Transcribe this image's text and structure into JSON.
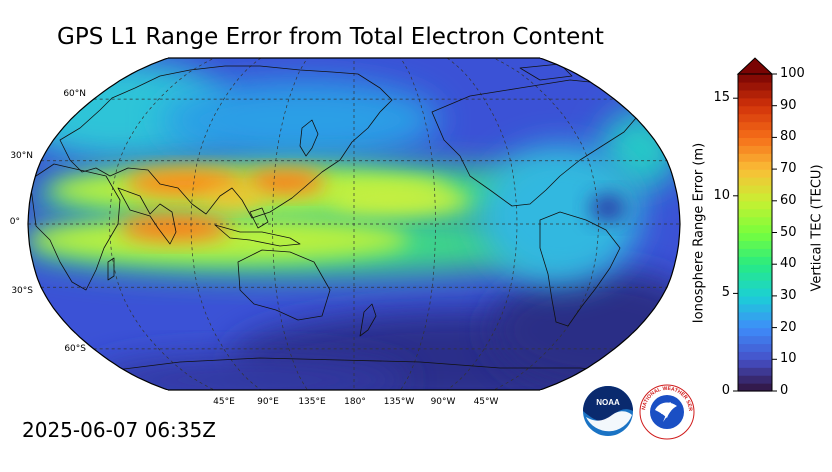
{
  "title": "GPS L1 Range Error from Total Electron Content",
  "timestamp": "2025-06-07 06:35Z",
  "map": {
    "projection": "robinson",
    "center_longitude": "180°",
    "latitude_labels": [
      "60°N",
      "30°N",
      "0°",
      "30°S",
      "60°S"
    ],
    "longitude_labels": [
      "45°E",
      "90°E",
      "135°E",
      "180°",
      "135°W",
      "90°W",
      "45°W"
    ],
    "background_color": "#3b4cc0",
    "highlight_colors": [
      "#ff7a1a",
      "#f4e842",
      "#30e0b0"
    ]
  },
  "colorbar": {
    "left_axis_label": "Ionosphere Range Error (m)",
    "left_ticks": [
      "0",
      "5",
      "10",
      "15"
    ],
    "right_axis_label": "Vertical TEC (TECU)",
    "right_ticks": [
      "0",
      "10",
      "20",
      "30",
      "40",
      "50",
      "60",
      "70",
      "80",
      "90",
      "100"
    ],
    "colormap": "turbo",
    "min_tecu": 0,
    "max_tecu": 100,
    "extend": "max"
  },
  "logos": {
    "noaa_text": "NOAA",
    "nws_text": "NATIONAL WEATHER SERVICE"
  }
}
